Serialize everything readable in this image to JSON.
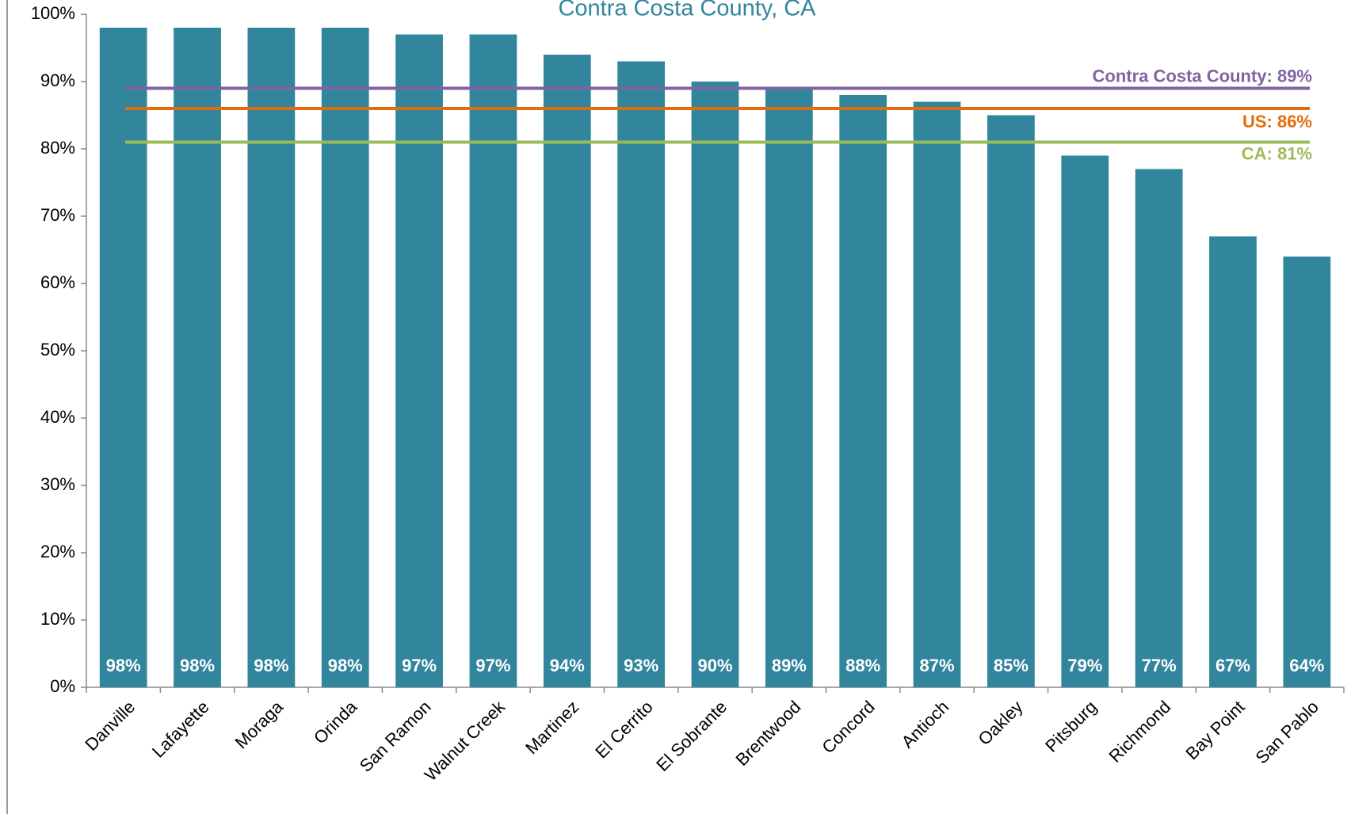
{
  "chart_data": {
    "type": "bar",
    "title": "Contra Costa County, CA",
    "categories": [
      "Danville",
      "Lafayette",
      "Moraga",
      "Orinda",
      "San Ramon",
      "Walnut Creek",
      "Martinez",
      "El Cerrito",
      "El Sobrante",
      "Brentwood",
      "Concord",
      "Antioch",
      "Oakley",
      "Pitsburg",
      "Richmond",
      "Bay Point",
      "San Pablo"
    ],
    "values": [
      98,
      98,
      98,
      98,
      97,
      97,
      94,
      93,
      90,
      89,
      88,
      87,
      85,
      79,
      77,
      67,
      64
    ],
    "value_labels": [
      "98%",
      "98%",
      "98%",
      "98%",
      "97%",
      "97%",
      "94%",
      "93%",
      "90%",
      "89%",
      "88%",
      "87%",
      "85%",
      "79%",
      "77%",
      "67%",
      "64%"
    ],
    "color": "#31859c",
    "ylim": [
      0,
      100
    ],
    "yticks": [
      {
        "value": 0,
        "label": "0%"
      },
      {
        "value": 10,
        "label": "10%"
      },
      {
        "value": 20,
        "label": "20%"
      },
      {
        "value": 30,
        "label": "30%"
      },
      {
        "value": 40,
        "label": "40%"
      },
      {
        "value": 50,
        "label": "50%"
      },
      {
        "value": 60,
        "label": "60%"
      },
      {
        "value": 70,
        "label": "70%"
      },
      {
        "value": 80,
        "label": "80%"
      },
      {
        "value": 90,
        "label": "90%"
      },
      {
        "value": 100,
        "label": "100%"
      }
    ],
    "reference_lines": [
      {
        "label": "Contra Costa County: 89%",
        "value": 89,
        "color": "#8064a2"
      },
      {
        "label": "US: 86%",
        "value": 86,
        "color": "#e46c0a"
      },
      {
        "label": "CA: 81%",
        "value": 81,
        "color": "#9bbb59"
      }
    ]
  }
}
